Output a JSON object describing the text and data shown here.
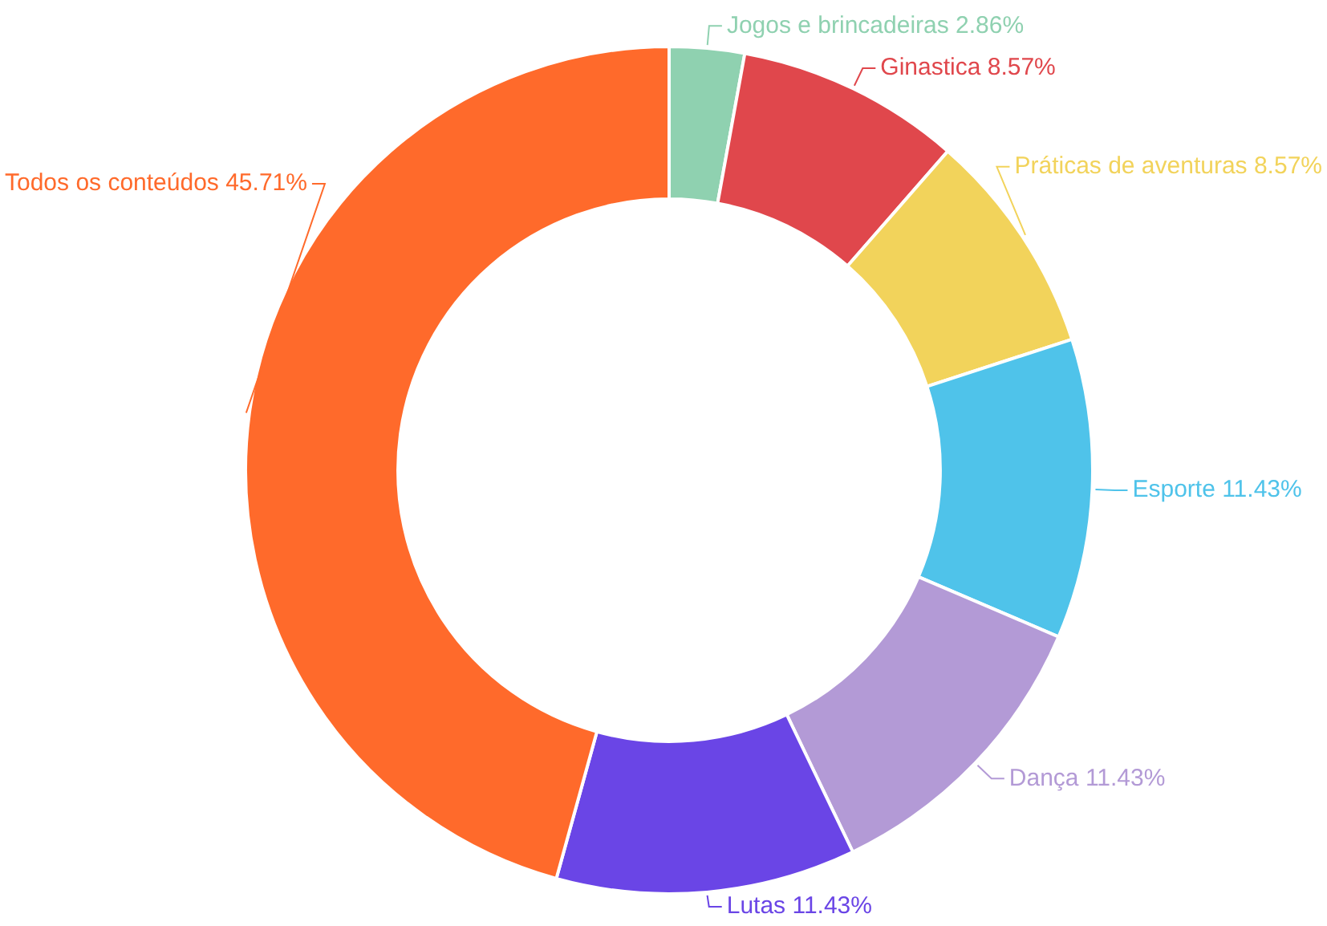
{
  "chart_data": {
    "type": "donut",
    "categories": [
      "Jogos e brincadeiras",
      "Ginastica",
      "Práticas de aventuras",
      "Esporte",
      "Dança",
      "Lutas",
      "Todos os conteúdos"
    ],
    "values": [
      2.86,
      8.57,
      8.57,
      11.43,
      11.43,
      11.43,
      45.71
    ],
    "value_labels": [
      "2.86%",
      "8.57%",
      "8.57%",
      "11.43%",
      "11.43%",
      "11.43%",
      "45.71%"
    ],
    "colors": [
      "#8fd1b0",
      "#e0474c",
      "#f2d35b",
      "#4fc3ea",
      "#b39ad6",
      "#6a45e6",
      "#ff6a2b"
    ]
  }
}
